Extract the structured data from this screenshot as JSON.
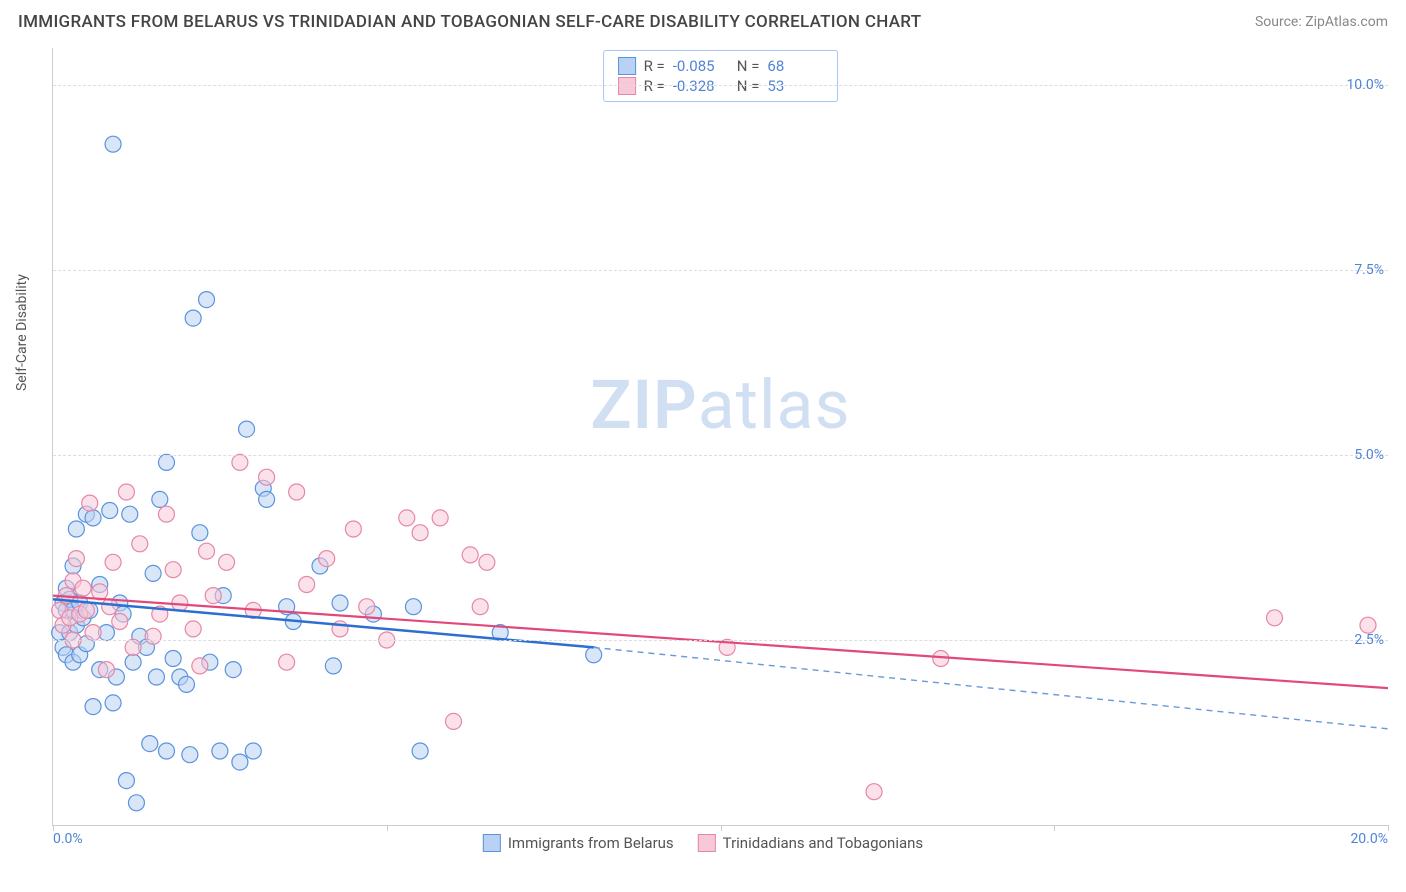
{
  "title": "IMMIGRANTS FROM BELARUS VS TRINIDADIAN AND TOBAGONIAN SELF-CARE DISABILITY CORRELATION CHART",
  "source": "Source: ZipAtlas.com",
  "watermark_a": "ZIP",
  "watermark_b": "atlas",
  "ylabel": "Self-Care Disability",
  "chart": {
    "type": "scatter",
    "xlim": [
      0,
      20
    ],
    "ylim": [
      0,
      10.5
    ],
    "x_ticks": [
      0,
      5,
      10,
      15,
      20
    ],
    "x_tick_labels": [
      "0.0%",
      "",
      "",
      "",
      "20.0%"
    ],
    "y_ticks": [
      2.5,
      5.0,
      7.5,
      10.0
    ],
    "y_tick_labels": [
      "2.5%",
      "5.0%",
      "7.5%",
      "10.0%"
    ],
    "background_color": "#ffffff",
    "grid_color": "#dddddd",
    "tick_label_color": "#4f84d4",
    "marker_radius": 8,
    "marker_opacity": 0.55,
    "series": [
      {
        "name": "Immigrants from Belarus",
        "fill": "#b9d2f3",
        "stroke": "#5a93de",
        "R": "-0.085",
        "N": "68",
        "trend": {
          "solid": {
            "x1": 0.0,
            "y1": 3.05,
            "x2": 8.1,
            "y2": 2.4,
            "color": "#2d6fd0",
            "width": 2.5
          },
          "dashed": {
            "x1": 8.1,
            "y1": 2.4,
            "x2": 20.0,
            "y2": 1.3,
            "color": "#6a99d9",
            "width": 1.4
          }
        },
        "points": [
          [
            0.1,
            2.6
          ],
          [
            0.15,
            3.0
          ],
          [
            0.15,
            2.4
          ],
          [
            0.2,
            2.9
          ],
          [
            0.2,
            3.2
          ],
          [
            0.2,
            2.3
          ],
          [
            0.25,
            2.6
          ],
          [
            0.25,
            3.05
          ],
          [
            0.3,
            2.9
          ],
          [
            0.3,
            2.2
          ],
          [
            0.3,
            3.5
          ],
          [
            0.35,
            2.7
          ],
          [
            0.35,
            4.0
          ],
          [
            0.4,
            2.3
          ],
          [
            0.4,
            3.0
          ],
          [
            0.45,
            2.8
          ],
          [
            0.5,
            2.45
          ],
          [
            0.5,
            4.2
          ],
          [
            0.55,
            2.9
          ],
          [
            0.6,
            1.6
          ],
          [
            0.6,
            4.15
          ],
          [
            0.7,
            3.25
          ],
          [
            0.7,
            2.1
          ],
          [
            0.8,
            2.6
          ],
          [
            0.85,
            4.25
          ],
          [
            0.9,
            9.2
          ],
          [
            0.9,
            1.65
          ],
          [
            0.95,
            2.0
          ],
          [
            1.0,
            3.0
          ],
          [
            1.05,
            2.85
          ],
          [
            1.1,
            0.6
          ],
          [
            1.15,
            4.2
          ],
          [
            1.2,
            2.2
          ],
          [
            1.25,
            0.3
          ],
          [
            1.3,
            2.55
          ],
          [
            1.4,
            2.4
          ],
          [
            1.45,
            1.1
          ],
          [
            1.5,
            3.4
          ],
          [
            1.55,
            2.0
          ],
          [
            1.6,
            4.4
          ],
          [
            1.7,
            4.9
          ],
          [
            1.7,
            1.0
          ],
          [
            1.8,
            2.25
          ],
          [
            1.9,
            2.0
          ],
          [
            2.0,
            1.9
          ],
          [
            2.05,
            0.95
          ],
          [
            2.1,
            6.85
          ],
          [
            2.2,
            3.95
          ],
          [
            2.3,
            7.1
          ],
          [
            2.35,
            2.2
          ],
          [
            2.5,
            1.0
          ],
          [
            2.55,
            3.1
          ],
          [
            2.7,
            2.1
          ],
          [
            2.8,
            0.85
          ],
          [
            2.9,
            5.35
          ],
          [
            3.0,
            1.0
          ],
          [
            3.15,
            4.55
          ],
          [
            3.2,
            4.4
          ],
          [
            3.5,
            2.95
          ],
          [
            3.6,
            2.75
          ],
          [
            4.0,
            3.5
          ],
          [
            4.2,
            2.15
          ],
          [
            4.3,
            3.0
          ],
          [
            4.8,
            2.85
          ],
          [
            5.4,
            2.95
          ],
          [
            5.5,
            1.0
          ],
          [
            6.7,
            2.6
          ],
          [
            8.1,
            2.3
          ]
        ]
      },
      {
        "name": "Trinidadians and Tobagonians",
        "fill": "#f7c8d7",
        "stroke": "#e687a6",
        "R": "-0.328",
        "N": "53",
        "trend": {
          "solid": {
            "x1": 0.0,
            "y1": 3.1,
            "x2": 20.0,
            "y2": 1.85,
            "color": "#e2497b",
            "width": 2.2
          }
        },
        "points": [
          [
            0.1,
            2.9
          ],
          [
            0.15,
            2.7
          ],
          [
            0.2,
            3.1
          ],
          [
            0.25,
            2.8
          ],
          [
            0.3,
            2.5
          ],
          [
            0.3,
            3.3
          ],
          [
            0.35,
            3.6
          ],
          [
            0.4,
            2.85
          ],
          [
            0.45,
            3.2
          ],
          [
            0.5,
            2.9
          ],
          [
            0.55,
            4.35
          ],
          [
            0.6,
            2.6
          ],
          [
            0.7,
            3.15
          ],
          [
            0.8,
            2.1
          ],
          [
            0.85,
            2.95
          ],
          [
            0.9,
            3.55
          ],
          [
            1.0,
            2.75
          ],
          [
            1.1,
            4.5
          ],
          [
            1.2,
            2.4
          ],
          [
            1.3,
            3.8
          ],
          [
            1.5,
            2.55
          ],
          [
            1.6,
            2.85
          ],
          [
            1.7,
            4.2
          ],
          [
            1.8,
            3.45
          ],
          [
            1.9,
            3.0
          ],
          [
            2.1,
            2.65
          ],
          [
            2.2,
            2.15
          ],
          [
            2.3,
            3.7
          ],
          [
            2.4,
            3.1
          ],
          [
            2.6,
            3.55
          ],
          [
            2.8,
            4.9
          ],
          [
            3.0,
            2.9
          ],
          [
            3.2,
            4.7
          ],
          [
            3.5,
            2.2
          ],
          [
            3.65,
            4.5
          ],
          [
            3.8,
            3.25
          ],
          [
            4.1,
            3.6
          ],
          [
            4.3,
            2.65
          ],
          [
            4.5,
            4.0
          ],
          [
            4.7,
            2.95
          ],
          [
            5.0,
            2.5
          ],
          [
            5.3,
            4.15
          ],
          [
            5.5,
            3.95
          ],
          [
            5.8,
            4.15
          ],
          [
            6.0,
            1.4
          ],
          [
            6.25,
            3.65
          ],
          [
            6.4,
            2.95
          ],
          [
            6.5,
            3.55
          ],
          [
            10.1,
            2.4
          ],
          [
            12.3,
            0.45
          ],
          [
            13.3,
            2.25
          ],
          [
            18.3,
            2.8
          ],
          [
            19.7,
            2.7
          ]
        ]
      }
    ]
  },
  "legend_top": {
    "r_label": "R =",
    "n_label": "N ="
  },
  "legend_bottom": [
    {
      "label": "Immigrants from Belarus",
      "fill": "#b9d2f3",
      "stroke": "#5a93de"
    },
    {
      "label": "Trinidadians and Tobagonians",
      "fill": "#f7c8d7",
      "stroke": "#e687a6"
    }
  ]
}
